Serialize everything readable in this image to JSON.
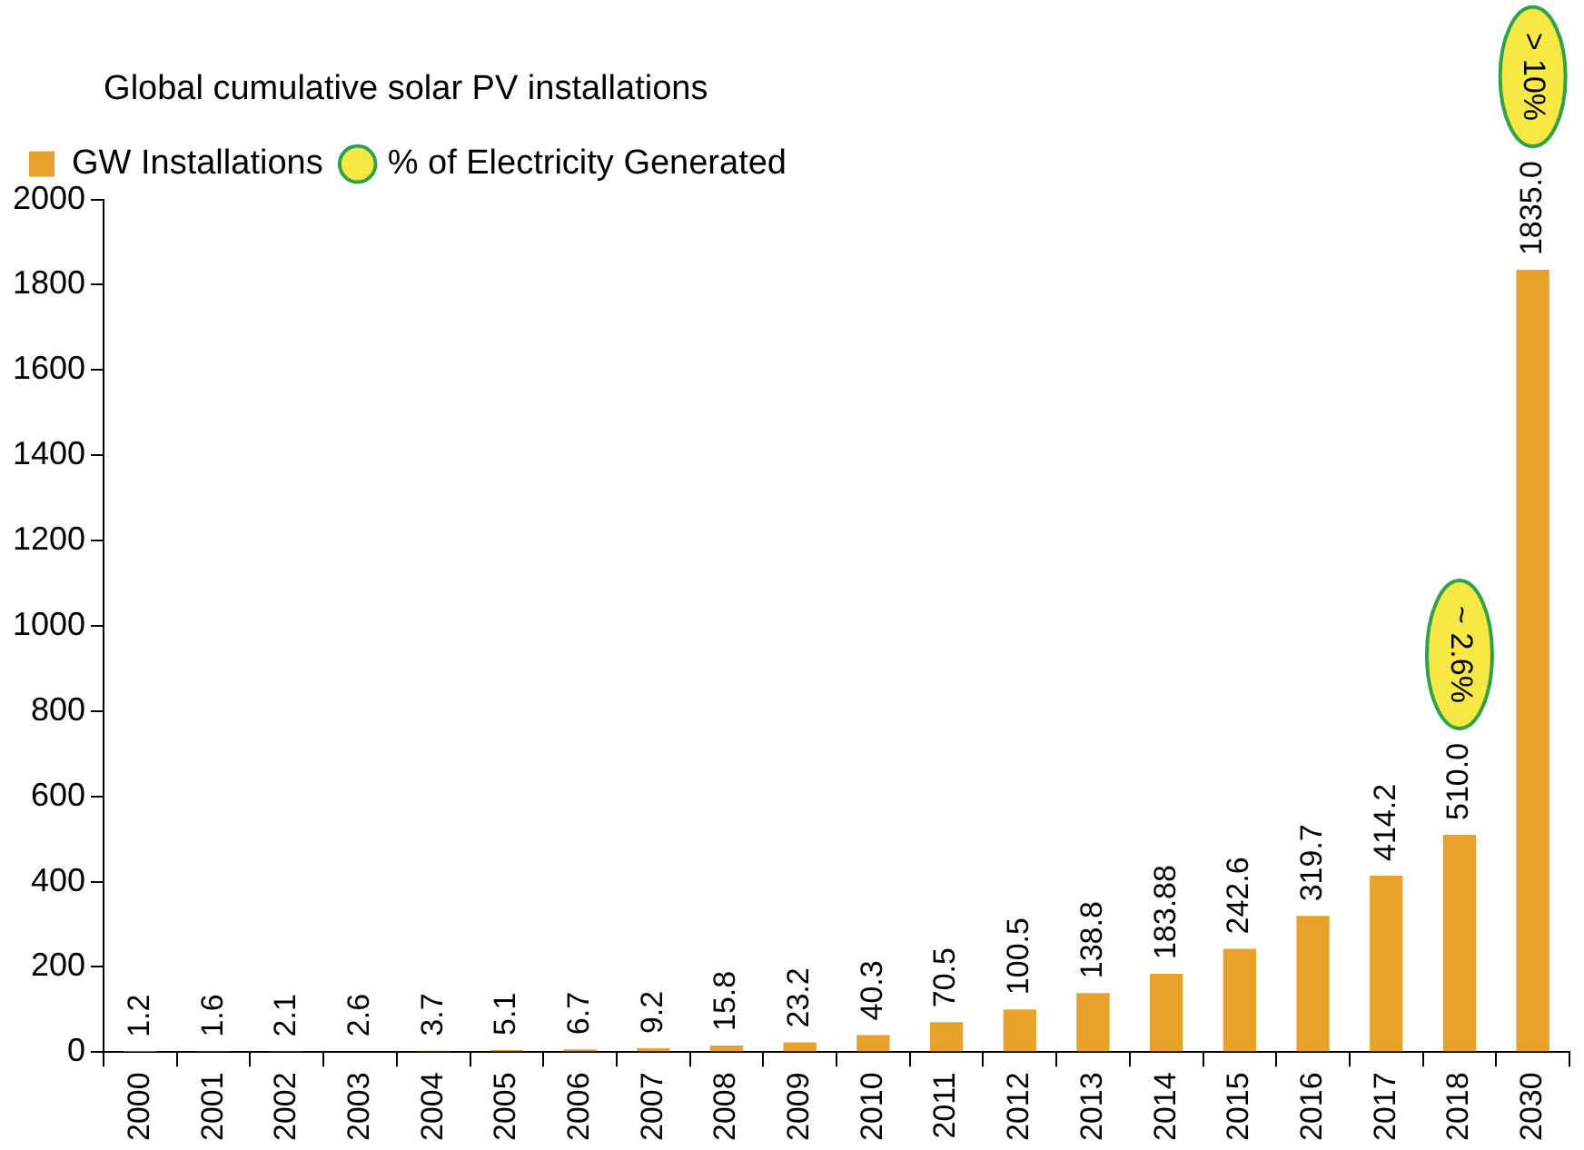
{
  "chart_data": {
    "type": "bar",
    "title": "Global cumulative solar PV installations",
    "categories": [
      "2000",
      "2001",
      "2002",
      "2003",
      "2004",
      "2005",
      "2006",
      "2007",
      "2008",
      "2009",
      "2010",
      "2011",
      "2012",
      "2013",
      "2014",
      "2015",
      "2016",
      "2017",
      "2018",
      "2030"
    ],
    "series": [
      {
        "name": "GW Installations",
        "color": "#e8a22a",
        "values": [
          1.2,
          1.6,
          2.1,
          2.6,
          3.7,
          5.1,
          6.7,
          9.2,
          15.8,
          23.2,
          40.3,
          70.5,
          100.5,
          138.8,
          183.88,
          242.6,
          319.7,
          414.2,
          510.0,
          1835.0
        ],
        "value_labels": [
          "1.2",
          "1.6",
          "2.1",
          "2.6",
          "3.7",
          "5.1",
          "6.7",
          "9.2",
          "15.8",
          "23.2",
          "40.3",
          "70.5",
          "100.5",
          "138.8",
          "183.88",
          "242.6",
          "319.7",
          "414.2",
          "510.0",
          "1835.0"
        ]
      },
      {
        "name": "% of Electricity Generated",
        "type": "scatter",
        "color": "#f7e843",
        "values": [
          null,
          null,
          null,
          null,
          null,
          null,
          null,
          null,
          null,
          null,
          null,
          null,
          null,
          null,
          null,
          null,
          null,
          null,
          null,
          null
        ]
      }
    ],
    "annotations": [
      "~ 2.6%",
      "> 10%"
    ],
    "ylim": [
      0,
      2000
    ],
    "yticks": [
      0,
      200,
      400,
      600,
      800,
      1000,
      1200,
      1400,
      1600,
      1800,
      2000
    ],
    "grid": false,
    "legend": "top left"
  }
}
